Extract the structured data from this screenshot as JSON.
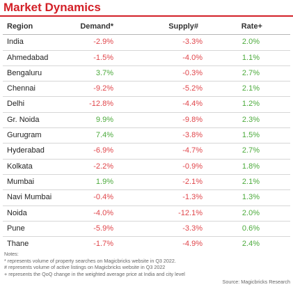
{
  "title": "Market Dynamics",
  "headers": {
    "region": "Region",
    "demand": "Demand*",
    "supply": "Supply#",
    "rate": "Rate+"
  },
  "rows": [
    {
      "region": "India",
      "demand": "-2.9%",
      "supply": "-3.3%",
      "rate": "2.0%"
    },
    {
      "region": "Ahmedabad",
      "demand": "-1.5%",
      "supply": "-4.0%",
      "rate": "1.1%"
    },
    {
      "region": "Bengaluru",
      "demand": "3.7%",
      "supply": "-0.3%",
      "rate": "2.7%"
    },
    {
      "region": "Chennai",
      "demand": "-9.2%",
      "supply": "-5.2%",
      "rate": "2.1%"
    },
    {
      "region": "Delhi",
      "demand": "-12.8%",
      "supply": "-4.4%",
      "rate": "1.2%"
    },
    {
      "region": "Gr. Noida",
      "demand": "9.9%",
      "supply": "-9.8%",
      "rate": "2.3%"
    },
    {
      "region": "Gurugram",
      "demand": "7.4%",
      "supply": "-3.8%",
      "rate": "1.5%"
    },
    {
      "region": "Hyderabad",
      "demand": "-6.9%",
      "supply": "-4.7%",
      "rate": "2.7%"
    },
    {
      "region": "Kolkata",
      "demand": "-2.2%",
      "supply": "-0.9%",
      "rate": "1.8%"
    },
    {
      "region": "Mumbai",
      "demand": "1.9%",
      "supply": "-2.1%",
      "rate": "2.1%"
    },
    {
      "region": "Navi Mumbai",
      "demand": "-0.4%",
      "supply": "-1.3%",
      "rate": "1.3%"
    },
    {
      "region": "Noida",
      "demand": "-4.0%",
      "supply": "-12.1%",
      "rate": "2.0%"
    },
    {
      "region": "Pune",
      "demand": "-5.9%",
      "supply": "-3.3%",
      "rate": "0.6%"
    },
    {
      "region": "Thane",
      "demand": "-1.7%",
      "supply": "-4.9%",
      "rate": "2.4%"
    }
  ],
  "notes": {
    "heading": "Notes:",
    "lines": [
      "* represents volume of property searches on Magicbricks website  in Q3 2022.",
      "# represents volume of active listings on Magicbricks website in Q3 2022",
      "+ represents  the QoQ change in the weighted average price at India and city level"
    ]
  },
  "source": "Source: Magicbricks Research",
  "colors": {
    "title": "#d32027",
    "positive": "#4caa3c",
    "negative": "#e0454a"
  }
}
